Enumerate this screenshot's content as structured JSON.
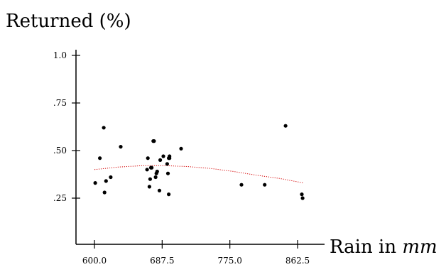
{
  "chart_data": {
    "type": "scatter",
    "ylabel": "Returned (%)",
    "xlabel_main": "Rain in",
    "xlabel_unit": "mm",
    "x_ticks": [
      {
        "value": 600.0,
        "label": "600.0"
      },
      {
        "value": 687.5,
        "label": "687.5"
      },
      {
        "value": 775.0,
        "label": "775.0"
      },
      {
        "value": 862.5,
        "label": "862.5"
      }
    ],
    "y_ticks": [
      {
        "value": 0.25,
        "label": ".25"
      },
      {
        "value": 0.5,
        "label": ".50"
      },
      {
        "value": 0.75,
        "label": ".75"
      },
      {
        "value": 1.0,
        "label": "1.0"
      }
    ],
    "xlim": [
      575,
      890
    ],
    "ylim": [
      0,
      1.1
    ],
    "points": [
      {
        "x": 601,
        "y": 0.33
      },
      {
        "x": 607,
        "y": 0.46
      },
      {
        "x": 612,
        "y": 0.62
      },
      {
        "x": 613,
        "y": 0.28
      },
      {
        "x": 615,
        "y": 0.34
      },
      {
        "x": 621,
        "y": 0.36
      },
      {
        "x": 634,
        "y": 0.52
      },
      {
        "x": 668,
        "y": 0.4
      },
      {
        "x": 669,
        "y": 0.46
      },
      {
        "x": 671,
        "y": 0.31
      },
      {
        "x": 672,
        "y": 0.35
      },
      {
        "x": 673,
        "y": 0.41
      },
      {
        "x": 674,
        "y": 0.41
      },
      {
        "x": 676,
        "y": 0.55
      },
      {
        "x": 677,
        "y": 0.55
      },
      {
        "x": 679,
        "y": 0.36
      },
      {
        "x": 680,
        "y": 0.38
      },
      {
        "x": 681,
        "y": 0.39
      },
      {
        "x": 684,
        "y": 0.29
      },
      {
        "x": 685,
        "y": 0.45
      },
      {
        "x": 689,
        "y": 0.47
      },
      {
        "x": 694,
        "y": 0.43
      },
      {
        "x": 695,
        "y": 0.38
      },
      {
        "x": 696,
        "y": 0.46
      },
      {
        "x": 696,
        "y": 0.27
      },
      {
        "x": 697,
        "y": 0.47
      },
      {
        "x": 697,
        "y": 0.46
      },
      {
        "x": 712,
        "y": 0.51
      },
      {
        "x": 790,
        "y": 0.32
      },
      {
        "x": 820,
        "y": 0.32
      },
      {
        "x": 847,
        "y": 0.63
      },
      {
        "x": 868,
        "y": 0.27
      },
      {
        "x": 869,
        "y": 0.25
      }
    ],
    "trend_line": {
      "x": [
        600,
        630,
        660,
        690,
        720,
        750,
        780,
        810,
        840,
        870
      ],
      "y": [
        0.4,
        0.413,
        0.42,
        0.421,
        0.416,
        0.406,
        0.39,
        0.37,
        0.353,
        0.33
      ]
    },
    "colors": {
      "points": "#000000",
      "trend": "#d40000",
      "axes": "#000000"
    }
  }
}
